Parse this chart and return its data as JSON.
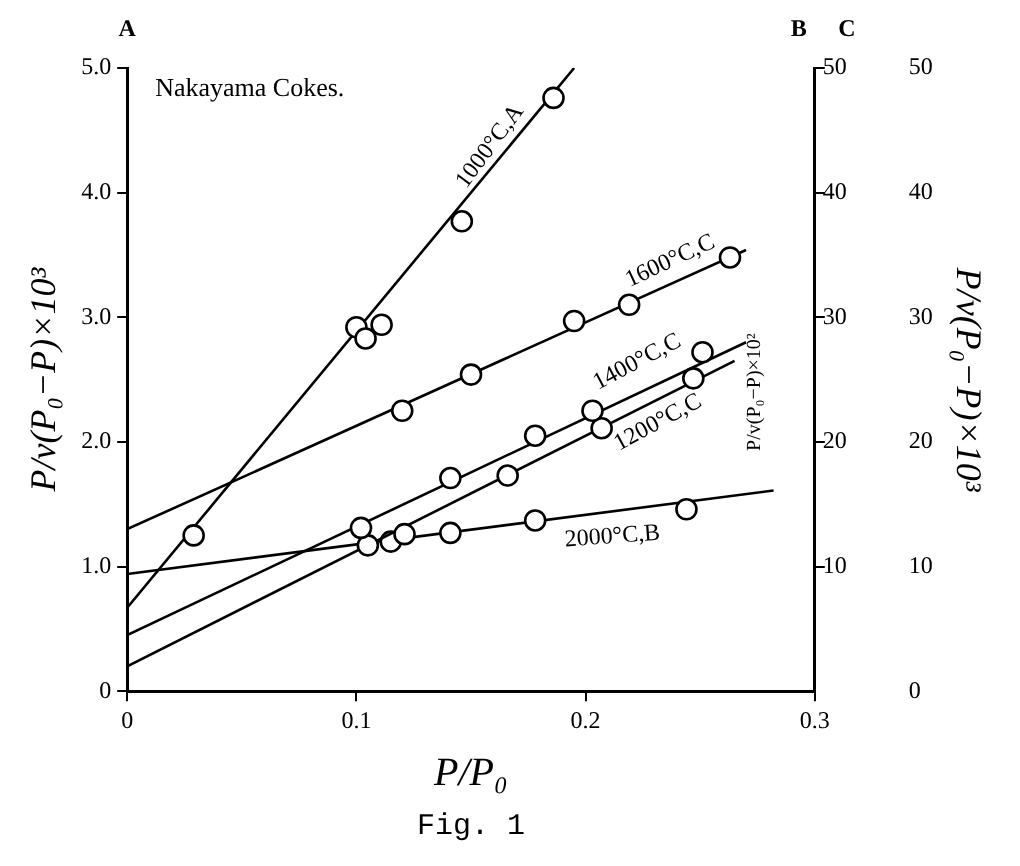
{
  "chart_data": {
    "type": "scatter",
    "xlabel": "P/P₀",
    "ylabel": "P/v(P₀−P)×10³",
    "y2label": "P/v(P₀−P)×10²",
    "y3label": "P/v(P₀−P)×10³",
    "annotations": [
      "Nakayama Cokes.",
      "A",
      "B",
      "C",
      "Fig. 1"
    ],
    "xlim": [
      0,
      0.3
    ],
    "xticks": [
      0,
      0.1,
      0.2,
      {
        "value": 0.3,
        "label": "0.3"
      }
    ],
    "ylim": [
      0,
      5
    ],
    "yticks": [
      0,
      {
        "value": 1,
        "label": "1.0"
      },
      {
        "value": 2,
        "label": "2.0"
      },
      {
        "value": 3,
        "label": "3.0"
      },
      {
        "value": 4,
        "label": "4.0"
      },
      {
        "value": 5,
        "label": "5.0"
      }
    ],
    "y2lim": [
      0,
      50
    ],
    "y2ticks": [
      10,
      20,
      30,
      40,
      50
    ],
    "y3lim": [
      0,
      50
    ],
    "y3ticks": [
      0,
      10,
      20,
      30,
      40,
      50
    ],
    "grid": false,
    "legend": false,
    "marker": "circle",
    "series": [
      {
        "name": "1000°C,A",
        "color": "#000000",
        "x": [
          0.029,
          0.1,
          0.104,
          0.111,
          0.146,
          0.186
        ],
        "values": [
          1.25,
          2.92,
          2.83,
          2.94,
          3.77,
          4.76
        ]
      },
      {
        "type": "line",
        "marker": "none",
        "color": "#000000",
        "x": [
          0,
          0.195
        ],
        "values": [
          0.67,
          5.0
        ]
      },
      {
        "name": "1600°C,C",
        "axis": "y2",
        "color": "#000000",
        "x": [
          0.12,
          0.15,
          0.195,
          0.219,
          0.263
        ],
        "values": [
          22.5,
          25.4,
          29.7,
          31.0,
          34.8
        ]
      },
      {
        "type": "line",
        "marker": "none",
        "axis": "y2",
        "color": "#000000",
        "x": [
          0,
          0.27
        ],
        "values": [
          13,
          35.4
        ]
      },
      {
        "name": "1400°C,C",
        "axis": "y2",
        "color": "#000000",
        "x": [
          0.102,
          0.141,
          0.178,
          0.203,
          0.251
        ],
        "values": [
          13.1,
          17.1,
          20.5,
          22.5,
          27.2
        ]
      },
      {
        "type": "line",
        "marker": "none",
        "axis": "y2",
        "color": "#000000",
        "x": [
          0,
          0.27
        ],
        "values": [
          4.5,
          28
        ]
      },
      {
        "name": "1200°C,C",
        "axis": "y2",
        "color": "#000000",
        "x": [
          0.105,
          0.121,
          0.166,
          0.207,
          0.247
        ],
        "values": [
          11.7,
          12.6,
          17.3,
          21.1,
          25.1
        ]
      },
      {
        "type": "line",
        "marker": "none",
        "axis": "y2",
        "color": "#000000",
        "x": [
          0,
          0.265
        ],
        "values": [
          2.0,
          26.5
        ]
      },
      {
        "name": "2000°C,B",
        "axis": "y2",
        "color": "#000000",
        "x": [
          0.115,
          0.141,
          0.178,
          0.244
        ],
        "values": [
          12.0,
          12.7,
          13.7,
          14.6
        ]
      },
      {
        "type": "line",
        "marker": "none",
        "axis": "y2",
        "color": "#000000",
        "x": [
          0,
          0.282
        ],
        "values": [
          9.4,
          16.1
        ]
      }
    ]
  }
}
